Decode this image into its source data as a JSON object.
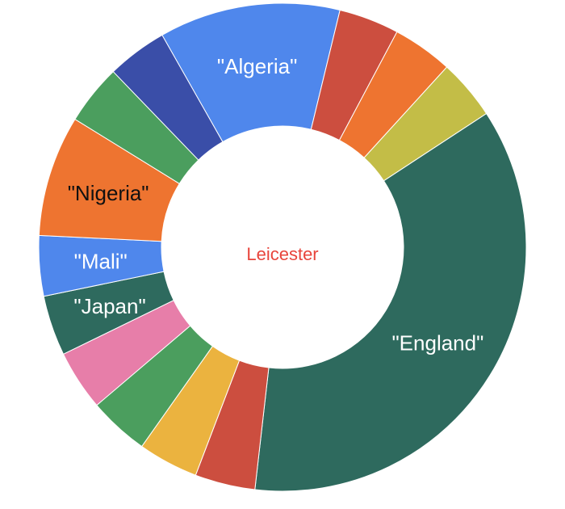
{
  "chart_data": {
    "type": "pie",
    "donut": true,
    "center_label": "Leicester",
    "center_label_color": "#e8453c",
    "slices": [
      {
        "label": "\"Algeria\"",
        "value": 4,
        "color": "#4f87ec",
        "label_color": "#ffffff"
      },
      {
        "label": "",
        "value": 1.33,
        "color": "#cc4e3f"
      },
      {
        "label": "",
        "value": 1.33,
        "color": "#ee7430"
      },
      {
        "label": "",
        "value": 1.33,
        "color": "#c3bd47"
      },
      {
        "label": "\"England\"",
        "value": 12,
        "color": "#2e6a5e",
        "label_color": "#ffffff"
      },
      {
        "label": "",
        "value": 1.33,
        "color": "#cc4e3f"
      },
      {
        "label": "",
        "value": 1.33,
        "color": "#ebb33f"
      },
      {
        "label": "",
        "value": 1.33,
        "color": "#4b9e5e"
      },
      {
        "label": "",
        "value": 1.33,
        "color": "#e77ea9"
      },
      {
        "label": "\"Japan\"",
        "value": 1.33,
        "color": "#2e6a5e",
        "label_color": "#ffffff"
      },
      {
        "label": "\"Mali\"",
        "value": 1.33,
        "color": "#4f87ec",
        "label_color": "#ffffff"
      },
      {
        "label": "\"Nigeria\"",
        "value": 2.67,
        "color": "#ee7430",
        "label_color": "#111111"
      },
      {
        "label": "",
        "value": 1.33,
        "color": "#4b9e5e"
      },
      {
        "label": "",
        "value": 1.33,
        "color": "#3a4ea8"
      }
    ]
  }
}
